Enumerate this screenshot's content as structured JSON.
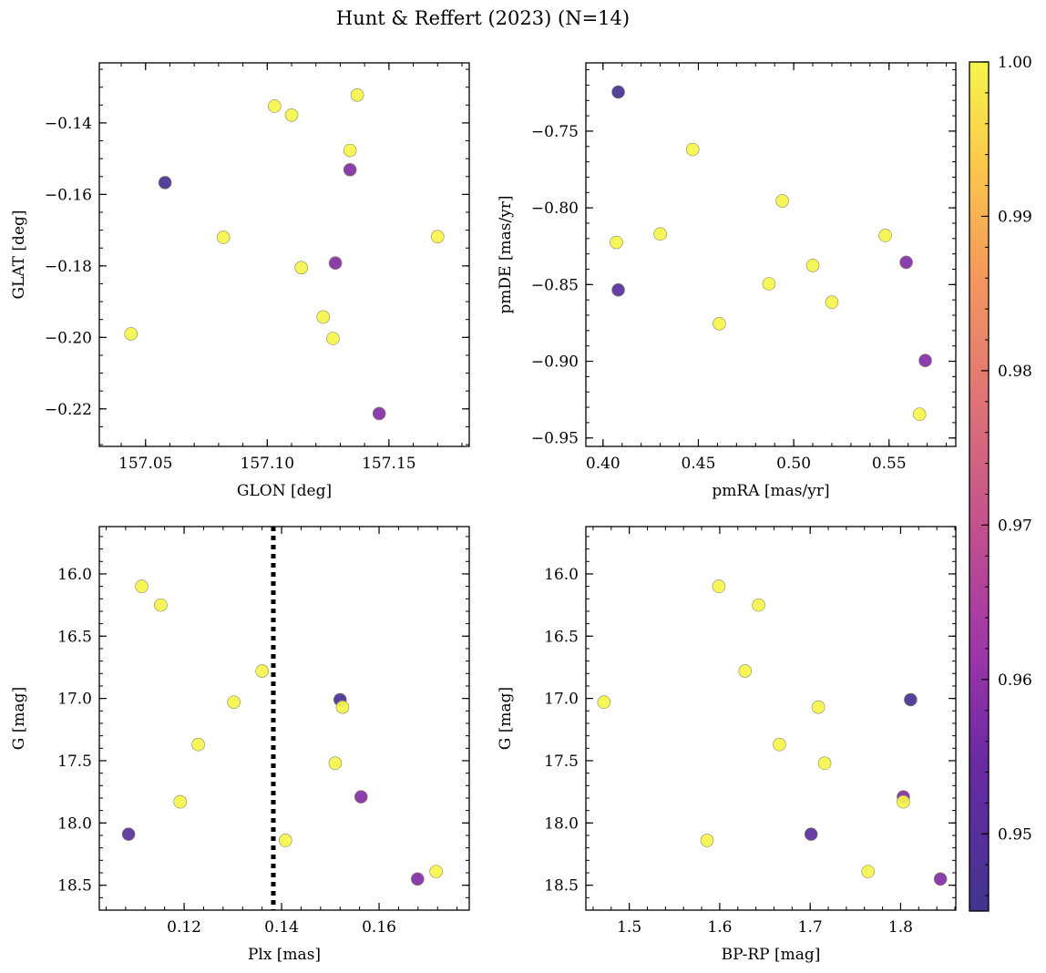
{
  "chart_data": {
    "title": "Hunt & Reffert (2023) (N=14)",
    "colorbar": {
      "colormap": "plasma",
      "vmin": 0.945,
      "vmax": 1.0,
      "ticks": [
        "0.95",
        "0.96",
        "0.97",
        "0.98",
        "0.99",
        "1.00"
      ],
      "tick_values": [
        0.95,
        0.96,
        0.97,
        0.98,
        0.99,
        1.0
      ]
    },
    "panels": [
      {
        "type": "scatter",
        "xlabel": "GLON [deg]",
        "ylabel": "GLAT [deg]",
        "xlim": [
          157.031,
          157.183
        ],
        "ylim": [
          -0.2305,
          -0.1232
        ],
        "y_inverted": false,
        "xticks": [
          157.05,
          157.1,
          157.15
        ],
        "xtick_labels": [
          "157.05",
          "157.10",
          "157.15"
        ],
        "yticks": [
          -0.14,
          -0.16,
          -0.18,
          -0.2,
          -0.22
        ],
        "ytick_labels": [
          "−0.14",
          "−0.16",
          "−0.18",
          "−0.20",
          "−0.22"
        ],
        "x_minor_step": 0.01,
        "y_minor_step": 0.005,
        "points": [
          {
            "x": 157.103,
            "y": -0.1353,
            "c": 1.0
          },
          {
            "x": 157.11,
            "y": -0.1378,
            "c": 1.0
          },
          {
            "x": 157.137,
            "y": -0.1322,
            "c": 1.0
          },
          {
            "x": 157.134,
            "y": -0.1477,
            "c": 1.0
          },
          {
            "x": 157.134,
            "y": -0.1531,
            "c": 0.958
          },
          {
            "x": 157.058,
            "y": -0.1567,
            "c": 0.947
          },
          {
            "x": 157.082,
            "y": -0.172,
            "c": 1.0
          },
          {
            "x": 157.17,
            "y": -0.1718,
            "c": 1.0
          },
          {
            "x": 157.114,
            "y": -0.1805,
            "c": 1.0
          },
          {
            "x": 157.128,
            "y": -0.1792,
            "c": 0.958
          },
          {
            "x": 157.123,
            "y": -0.1943,
            "c": 1.0
          },
          {
            "x": 157.127,
            "y": -0.2003,
            "c": 1.0
          },
          {
            "x": 157.044,
            "y": -0.199,
            "c": 1.0
          },
          {
            "x": 157.146,
            "y": -0.2213,
            "c": 0.958
          }
        ]
      },
      {
        "type": "scatter",
        "xlabel": "pmRA [mas/yr]",
        "ylabel": "pmDE [mas/yr]",
        "xlim": [
          0.391,
          0.585
        ],
        "ylim": [
          -0.9555,
          -0.7055
        ],
        "y_inverted": false,
        "xticks": [
          0.4,
          0.45,
          0.5,
          0.55
        ],
        "xtick_labels": [
          "0.40",
          "0.45",
          "0.50",
          "0.55"
        ],
        "yticks": [
          -0.75,
          -0.8,
          -0.85,
          -0.9,
          -0.95
        ],
        "ytick_labels": [
          "−0.75",
          "−0.80",
          "−0.85",
          "−0.90",
          "−0.95"
        ],
        "x_minor_step": 0.01,
        "y_minor_step": 0.01,
        "points": [
          {
            "x": 0.408,
            "y": -0.7245,
            "c": 0.947
          },
          {
            "x": 0.447,
            "y": -0.762,
            "c": 1.0
          },
          {
            "x": 0.494,
            "y": -0.7955,
            "c": 1.0
          },
          {
            "x": 0.43,
            "y": -0.817,
            "c": 1.0
          },
          {
            "x": 0.407,
            "y": -0.8225,
            "c": 1.0
          },
          {
            "x": 0.548,
            "y": -0.818,
            "c": 1.0
          },
          {
            "x": 0.51,
            "y": -0.8375,
            "c": 1.0
          },
          {
            "x": 0.559,
            "y": -0.8355,
            "c": 0.958
          },
          {
            "x": 0.408,
            "y": -0.8535,
            "c": 0.951
          },
          {
            "x": 0.487,
            "y": -0.8495,
            "c": 1.0
          },
          {
            "x": 0.52,
            "y": -0.8615,
            "c": 1.0
          },
          {
            "x": 0.461,
            "y": -0.8755,
            "c": 1.0
          },
          {
            "x": 0.569,
            "y": -0.8995,
            "c": 0.958
          },
          {
            "x": 0.566,
            "y": -0.9345,
            "c": 1.0
          }
        ]
      },
      {
        "type": "scatter",
        "xlabel": "Plx [mas]",
        "ylabel": "G [mag]",
        "xlim": [
          0.1026,
          0.1785
        ],
        "ylim": [
          15.62,
          18.7
        ],
        "y_inverted": true,
        "xticks": [
          0.12,
          0.14,
          0.16
        ],
        "xtick_labels": [
          "0.12",
          "0.14",
          "0.16"
        ],
        "yticks": [
          16.0,
          16.5,
          17.0,
          17.5,
          18.0,
          18.5
        ],
        "ytick_labels": [
          "16.0",
          "16.5",
          "17.0",
          "17.5",
          "18.0",
          "18.5"
        ],
        "x_minor_step": 0.004,
        "y_minor_step": 0.1,
        "vline": {
          "x": 0.1383,
          "style": "dotted"
        },
        "points": [
          {
            "x": 0.1113,
            "y": 16.1,
            "c": 1.0
          },
          {
            "x": 0.1152,
            "y": 16.25,
            "c": 1.0
          },
          {
            "x": 0.136,
            "y": 16.78,
            "c": 1.0
          },
          {
            "x": 0.1302,
            "y": 17.03,
            "c": 1.0
          },
          {
            "x": 0.152,
            "y": 17.01,
            "c": 0.947
          },
          {
            "x": 0.1525,
            "y": 17.07,
            "c": 1.0
          },
          {
            "x": 0.1229,
            "y": 17.37,
            "c": 1.0
          },
          {
            "x": 0.151,
            "y": 17.52,
            "c": 1.0
          },
          {
            "x": 0.1563,
            "y": 17.79,
            "c": 0.958
          },
          {
            "x": 0.1192,
            "y": 17.83,
            "c": 1.0
          },
          {
            "x": 0.1086,
            "y": 18.09,
            "c": 0.951
          },
          {
            "x": 0.1408,
            "y": 18.14,
            "c": 1.0
          },
          {
            "x": 0.1679,
            "y": 18.45,
            "c": 0.958
          },
          {
            "x": 0.1717,
            "y": 18.39,
            "c": 1.0
          }
        ]
      },
      {
        "type": "scatter",
        "xlabel": "BP-RP [mag]",
        "ylabel": "G [mag]",
        "xlim": [
          1.452,
          1.861
        ],
        "ylim": [
          15.62,
          18.7
        ],
        "y_inverted": true,
        "xticks": [
          1.5,
          1.6,
          1.7,
          1.8
        ],
        "xtick_labels": [
          "1.5",
          "1.6",
          "1.7",
          "1.8"
        ],
        "yticks": [
          16.0,
          16.5,
          17.0,
          17.5,
          18.0,
          18.5
        ],
        "ytick_labels": [
          "16.0",
          "16.5",
          "17.0",
          "17.5",
          "18.0",
          "18.5"
        ],
        "x_minor_step": 0.02,
        "y_minor_step": 0.1,
        "points": [
          {
            "x": 1.599,
            "y": 16.1,
            "c": 1.0
          },
          {
            "x": 1.643,
            "y": 16.25,
            "c": 1.0
          },
          {
            "x": 1.628,
            "y": 16.78,
            "c": 1.0
          },
          {
            "x": 1.472,
            "y": 17.03,
            "c": 1.0
          },
          {
            "x": 1.811,
            "y": 17.01,
            "c": 0.947
          },
          {
            "x": 1.709,
            "y": 17.07,
            "c": 1.0
          },
          {
            "x": 1.666,
            "y": 17.37,
            "c": 1.0
          },
          {
            "x": 1.716,
            "y": 17.52,
            "c": 1.0
          },
          {
            "x": 1.803,
            "y": 17.79,
            "c": 0.958
          },
          {
            "x": 1.803,
            "y": 17.83,
            "c": 1.0
          },
          {
            "x": 1.701,
            "y": 18.09,
            "c": 0.951
          },
          {
            "x": 1.586,
            "y": 18.14,
            "c": 1.0
          },
          {
            "x": 1.764,
            "y": 18.39,
            "c": 1.0
          },
          {
            "x": 1.844,
            "y": 18.45,
            "c": 0.958
          }
        ]
      }
    ]
  }
}
